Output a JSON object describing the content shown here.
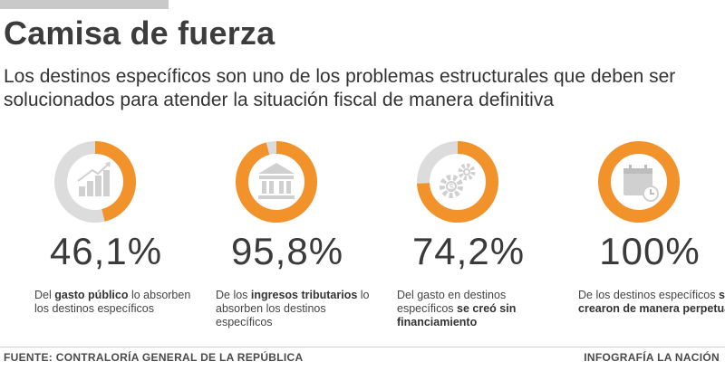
{
  "header": {
    "title": "Camisa de fuerza",
    "subtitle": "Los destinos específicos son uno de los problemas estructurales que deben ser solucionados para atender la situación fiscal de manera definitiva"
  },
  "colors": {
    "accent": "#f2922b",
    "track": "#dcdcdc",
    "icon": "#d0d0d0"
  },
  "stats": [
    {
      "value": "46,1%",
      "percent": 46.1,
      "icon": "bar-chart-icon",
      "desc_pre": "Del ",
      "desc_bold": "gasto público",
      "desc_post": " lo absorben los destinos específicos"
    },
    {
      "value": "95,8%",
      "percent": 95.8,
      "icon": "bank-building-icon",
      "desc_pre": "De los ",
      "desc_bold": "ingresos tributarios",
      "desc_post": " lo absorben los destinos específicos"
    },
    {
      "value": "74,2%",
      "percent": 74.2,
      "icon": "gears-icon",
      "desc_pre": "Del gasto en destinos específicos ",
      "desc_bold": "se creó sin financiamiento",
      "desc_post": ""
    },
    {
      "value": "100%",
      "percent": 100,
      "icon": "calendar-clock-icon",
      "desc_pre": "De los destinos específicos ",
      "desc_bold": "se crearon de manera perpetua",
      "desc_post": ""
    }
  ],
  "footer": {
    "source": "FUENTE: CONTRALORÍA GENERAL DE LA REPÚBLICA",
    "credit": "INFOGRAFÍA LA NACIÓN"
  }
}
